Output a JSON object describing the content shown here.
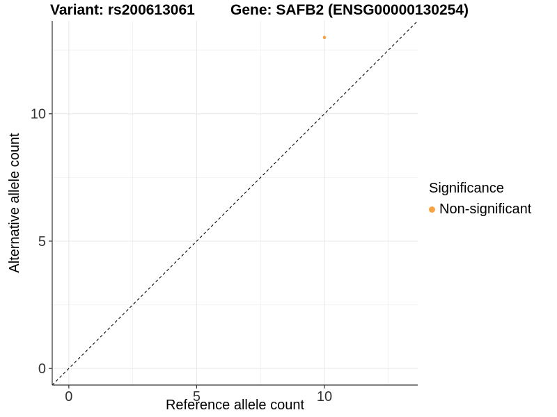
{
  "titles": {
    "variant": "Variant: rs200613061",
    "gene": "Gene: SAFB2 (ENSG00000130254)"
  },
  "chart_data": {
    "type": "scatter",
    "title": "Variant: rs200613061   Gene: SAFB2 (ENSG00000130254)",
    "xlabel": "Reference allele count",
    "ylabel": "Alternative allele count",
    "xlim": [
      -0.65,
      13.65
    ],
    "ylim": [
      -0.65,
      13.65
    ],
    "x_ticks": [
      0,
      5,
      10
    ],
    "y_ticks": [
      0,
      5,
      10
    ],
    "x_minor_ticks": [
      2.5,
      7.5,
      12.5
    ],
    "y_minor_ticks": [
      2.5,
      7.5,
      12.5
    ],
    "grid": "major+minor",
    "series": [
      {
        "name": "Non-significant",
        "color": "#F9A242",
        "points": [
          {
            "x": 10,
            "y": 13
          }
        ]
      }
    ],
    "reference_line": {
      "slope": 1,
      "intercept": 0,
      "style": "dashed",
      "color": "#000000"
    },
    "legend": {
      "title": "Significance",
      "position": "right",
      "items": [
        {
          "label": "Non-significant",
          "color": "#F9A242"
        }
      ]
    }
  },
  "style": {
    "background": "#FFFFFF",
    "point_color": "#F9A242",
    "grid_major_color": "#E7E7E7",
    "grid_minor_color": "#F3F3F3",
    "axis_line_color": "#333333",
    "tick_label_color": "#333333",
    "dashed_line_color": "#000000"
  }
}
